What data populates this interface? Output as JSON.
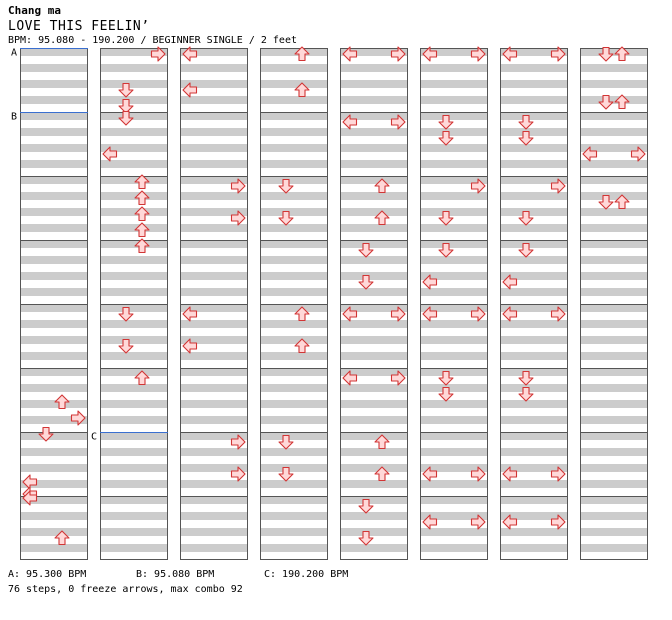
{
  "header": {
    "artist": "Chang ma",
    "title": "LOVE THIS FEELIN’",
    "meta": "BPM: 95.080 - 190.200 / BEGINNER SINGLE / 2 feet"
  },
  "footer": {
    "bpms": [
      "A: 95.300 BPM",
      "B: 95.080 BPM",
      "C: 190.200 BPM"
    ],
    "stats": "76 steps, 0 freeze arrows, max combo 92"
  },
  "colors": {
    "stripe": "#cccccc",
    "border": "#555555",
    "arrow_fill": "#ffd8d8",
    "arrow_stroke": "#d23535",
    "marker_line": "#3a6fd0"
  },
  "chart": {
    "columns": 8,
    "measures_per_column": 8,
    "steps_per_measure": 16,
    "marker_labels": [
      "A",
      "B",
      "C"
    ],
    "bpm_markers": [
      {
        "label": "A",
        "column": 0,
        "measure": 0
      },
      {
        "label": "B",
        "column": 0,
        "measure": 1
      },
      {
        "label": "C",
        "column": 1,
        "measure": 6
      }
    ],
    "arrows": [
      {
        "c": 0,
        "m": 5,
        "s": 8,
        "d": "up"
      },
      {
        "c": 0,
        "m": 5,
        "s": 12,
        "d": "right"
      },
      {
        "c": 0,
        "m": 6,
        "s": 0,
        "d": "down"
      },
      {
        "c": 0,
        "m": 6,
        "s": 12,
        "d": "left"
      },
      {
        "c": 0,
        "m": 6,
        "s": 15,
        "d": "left"
      },
      {
        "c": 0,
        "m": 7,
        "s": 0,
        "d": "left"
      },
      {
        "c": 0,
        "m": 7,
        "s": 10,
        "d": "up"
      },
      {
        "c": 1,
        "m": 0,
        "s": 1,
        "d": "right"
      },
      {
        "c": 1,
        "m": 0,
        "s": 10,
        "d": "down"
      },
      {
        "c": 1,
        "m": 0,
        "s": 14,
        "d": "down"
      },
      {
        "c": 1,
        "m": 1,
        "s": 1,
        "d": "down"
      },
      {
        "c": 1,
        "m": 1,
        "s": 10,
        "d": "left"
      },
      {
        "c": 1,
        "m": 2,
        "s": 1,
        "d": "up"
      },
      {
        "c": 1,
        "m": 2,
        "s": 5,
        "d": "up"
      },
      {
        "c": 1,
        "m": 2,
        "s": 9,
        "d": "up"
      },
      {
        "c": 1,
        "m": 2,
        "s": 13,
        "d": "up"
      },
      {
        "c": 1,
        "m": 3,
        "s": 1,
        "d": "up"
      },
      {
        "c": 1,
        "m": 4,
        "s": 2,
        "d": "down"
      },
      {
        "c": 1,
        "m": 4,
        "s": 10,
        "d": "down"
      },
      {
        "c": 1,
        "m": 5,
        "s": 2,
        "d": "up"
      },
      {
        "c": 2,
        "m": 0,
        "s": 1,
        "d": "left"
      },
      {
        "c": 2,
        "m": 0,
        "s": 10,
        "d": "left"
      },
      {
        "c": 2,
        "m": 2,
        "s": 2,
        "d": "right"
      },
      {
        "c": 2,
        "m": 2,
        "s": 10,
        "d": "right"
      },
      {
        "c": 2,
        "m": 4,
        "s": 2,
        "d": "left"
      },
      {
        "c": 2,
        "m": 4,
        "s": 10,
        "d": "left"
      },
      {
        "c": 2,
        "m": 6,
        "s": 2,
        "d": "right"
      },
      {
        "c": 2,
        "m": 6,
        "s": 10,
        "d": "right"
      },
      {
        "c": 3,
        "m": 0,
        "s": 1,
        "d": "up"
      },
      {
        "c": 3,
        "m": 0,
        "s": 10,
        "d": "up"
      },
      {
        "c": 3,
        "m": 2,
        "s": 2,
        "d": "down"
      },
      {
        "c": 3,
        "m": 2,
        "s": 10,
        "d": "down"
      },
      {
        "c": 3,
        "m": 4,
        "s": 2,
        "d": "up"
      },
      {
        "c": 3,
        "m": 4,
        "s": 10,
        "d": "up"
      },
      {
        "c": 3,
        "m": 6,
        "s": 2,
        "d": "down"
      },
      {
        "c": 3,
        "m": 6,
        "s": 10,
        "d": "down"
      },
      {
        "c": 4,
        "m": 0,
        "s": 1,
        "d": "left"
      },
      {
        "c": 4,
        "m": 0,
        "s": 1,
        "d": "right"
      },
      {
        "c": 4,
        "m": 1,
        "s": 2,
        "d": "left"
      },
      {
        "c": 4,
        "m": 1,
        "s": 2,
        "d": "right"
      },
      {
        "c": 4,
        "m": 2,
        "s": 2,
        "d": "up"
      },
      {
        "c": 4,
        "m": 2,
        "s": 10,
        "d": "up"
      },
      {
        "c": 4,
        "m": 3,
        "s": 2,
        "d": "down"
      },
      {
        "c": 4,
        "m": 3,
        "s": 10,
        "d": "down"
      },
      {
        "c": 4,
        "m": 4,
        "s": 2,
        "d": "left"
      },
      {
        "c": 4,
        "m": 4,
        "s": 2,
        "d": "right"
      },
      {
        "c": 4,
        "m": 5,
        "s": 2,
        "d": "left"
      },
      {
        "c": 4,
        "m": 5,
        "s": 2,
        "d": "right"
      },
      {
        "c": 4,
        "m": 6,
        "s": 2,
        "d": "up"
      },
      {
        "c": 4,
        "m": 6,
        "s": 10,
        "d": "up"
      },
      {
        "c": 4,
        "m": 7,
        "s": 2,
        "d": "down"
      },
      {
        "c": 4,
        "m": 7,
        "s": 10,
        "d": "down"
      },
      {
        "c": 5,
        "m": 0,
        "s": 1,
        "d": "left"
      },
      {
        "c": 5,
        "m": 0,
        "s": 1,
        "d": "right"
      },
      {
        "c": 5,
        "m": 1,
        "s": 2,
        "d": "down"
      },
      {
        "c": 5,
        "m": 1,
        "s": 6,
        "d": "down"
      },
      {
        "c": 5,
        "m": 2,
        "s": 2,
        "d": "right"
      },
      {
        "c": 5,
        "m": 2,
        "s": 10,
        "d": "down"
      },
      {
        "c": 5,
        "m": 3,
        "s": 2,
        "d": "down"
      },
      {
        "c": 5,
        "m": 3,
        "s": 10,
        "d": "left"
      },
      {
        "c": 5,
        "m": 4,
        "s": 2,
        "d": "left"
      },
      {
        "c": 5,
        "m": 4,
        "s": 2,
        "d": "right"
      },
      {
        "c": 5,
        "m": 5,
        "s": 2,
        "d": "down"
      },
      {
        "c": 5,
        "m": 5,
        "s": 6,
        "d": "down"
      },
      {
        "c": 5,
        "m": 6,
        "s": 10,
        "d": "left"
      },
      {
        "c": 5,
        "m": 6,
        "s": 10,
        "d": "right"
      },
      {
        "c": 5,
        "m": 7,
        "s": 6,
        "d": "left"
      },
      {
        "c": 5,
        "m": 7,
        "s": 6,
        "d": "right"
      },
      {
        "c": 6,
        "m": 0,
        "s": 1,
        "d": "left"
      },
      {
        "c": 6,
        "m": 0,
        "s": 1,
        "d": "right"
      },
      {
        "c": 6,
        "m": 1,
        "s": 2,
        "d": "down"
      },
      {
        "c": 6,
        "m": 1,
        "s": 6,
        "d": "down"
      },
      {
        "c": 6,
        "m": 2,
        "s": 2,
        "d": "right"
      },
      {
        "c": 6,
        "m": 2,
        "s": 10,
        "d": "down"
      },
      {
        "c": 6,
        "m": 3,
        "s": 2,
        "d": "down"
      },
      {
        "c": 6,
        "m": 3,
        "s": 10,
        "d": "left"
      },
      {
        "c": 6,
        "m": 4,
        "s": 2,
        "d": "left"
      },
      {
        "c": 6,
        "m": 4,
        "s": 2,
        "d": "right"
      },
      {
        "c": 6,
        "m": 5,
        "s": 2,
        "d": "down"
      },
      {
        "c": 6,
        "m": 5,
        "s": 6,
        "d": "down"
      },
      {
        "c": 6,
        "m": 6,
        "s": 10,
        "d": "left"
      },
      {
        "c": 6,
        "m": 6,
        "s": 10,
        "d": "right"
      },
      {
        "c": 6,
        "m": 7,
        "s": 6,
        "d": "left"
      },
      {
        "c": 6,
        "m": 7,
        "s": 6,
        "d": "right"
      },
      {
        "c": 7,
        "m": 0,
        "s": 1,
        "d": "down"
      },
      {
        "c": 7,
        "m": 0,
        "s": 1,
        "d": "up"
      },
      {
        "c": 7,
        "m": 0,
        "s": 13,
        "d": "down"
      },
      {
        "c": 7,
        "m": 0,
        "s": 13,
        "d": "up"
      },
      {
        "c": 7,
        "m": 1,
        "s": 10,
        "d": "left"
      },
      {
        "c": 7,
        "m": 1,
        "s": 10,
        "d": "right"
      },
      {
        "c": 7,
        "m": 2,
        "s": 6,
        "d": "down"
      },
      {
        "c": 7,
        "m": 2,
        "s": 6,
        "d": "up"
      }
    ]
  }
}
